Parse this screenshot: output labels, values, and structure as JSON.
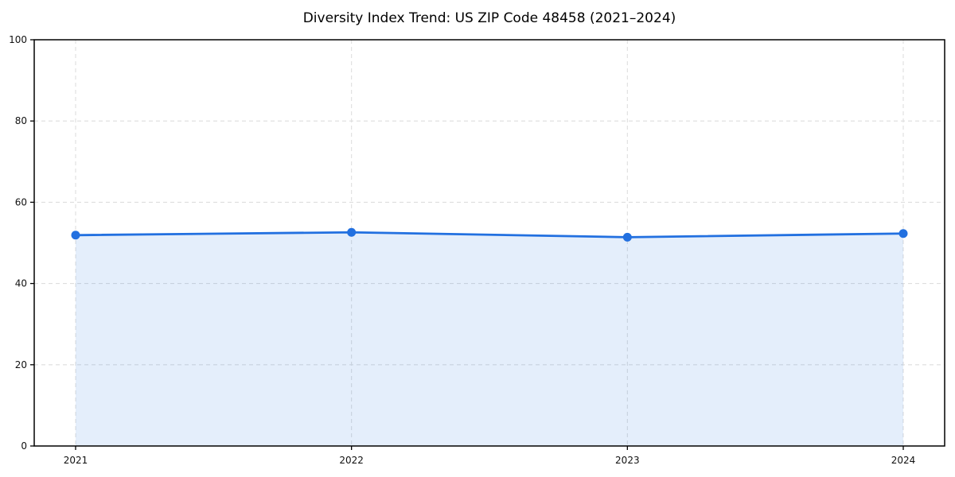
{
  "chart_data": {
    "type": "area",
    "title": "Diversity Index Trend: US ZIP Code 48458 (2021–2024)",
    "xlabel": "",
    "ylabel": "",
    "x": [
      2021,
      2022,
      2023,
      2024
    ],
    "x_tick_labels": [
      "2021",
      "2022",
      "2023",
      "2024"
    ],
    "series": [
      {
        "name": "Diversity Index",
        "values": [
          51.9,
          52.6,
          51.4,
          52.3
        ]
      }
    ],
    "xlim": [
      2020.85,
      2024.15
    ],
    "ylim": [
      0,
      100
    ],
    "yticks": [
      0,
      20,
      40,
      60,
      80,
      100
    ],
    "grid": true,
    "grid_style": "dashed",
    "legend": "none",
    "colors": {
      "line": "#2270e0",
      "marker": "#2270e0",
      "area_fill": "rgba(34, 112, 224, 0.12)",
      "grid": "#dedede",
      "axis": "#000000",
      "tick_text": "#111111",
      "title_text": "#000000",
      "background": "#ffffff"
    }
  }
}
